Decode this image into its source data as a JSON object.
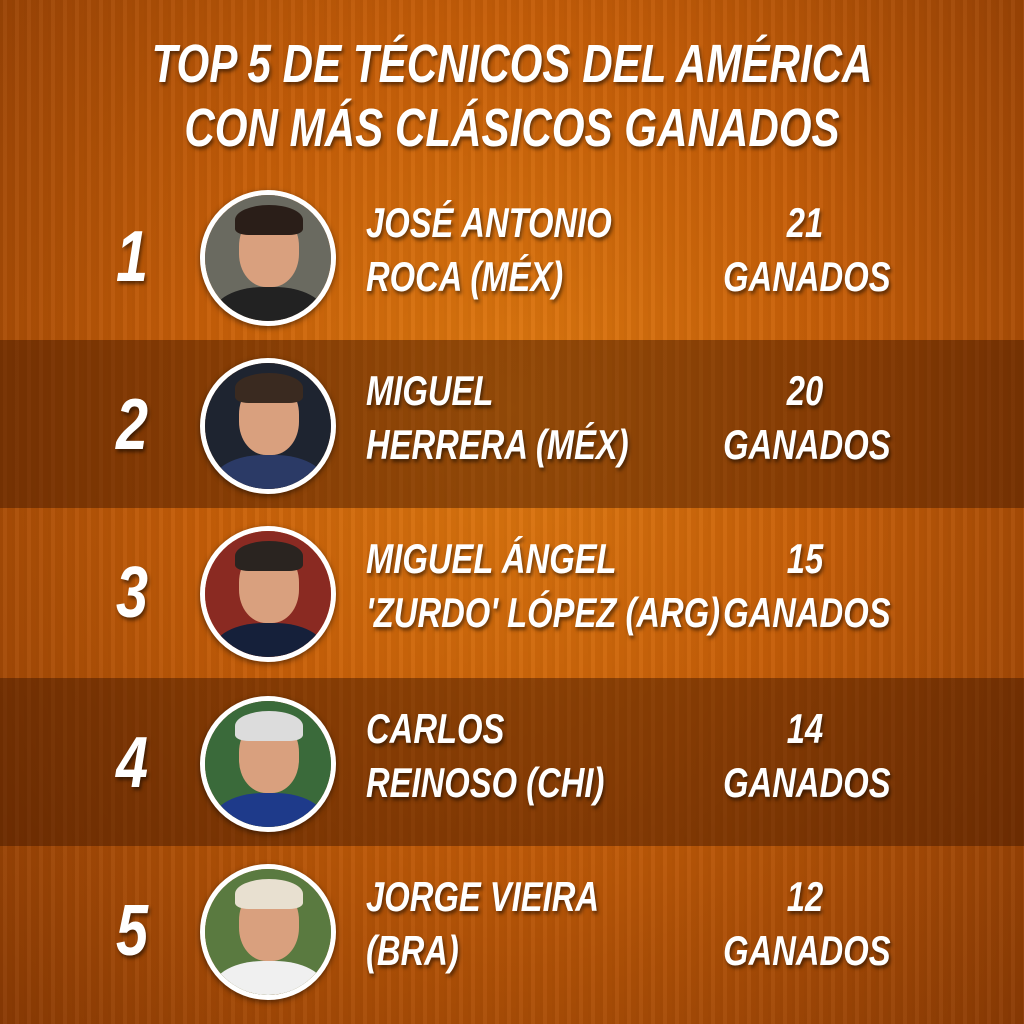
{
  "title": {
    "line1": "TOP 5 DE TÉCNICOS DEL AMÉRICA",
    "line2": "CON MÁS CLÁSICOS GANADOS"
  },
  "rows": [
    {
      "rank": "1",
      "name1": "JOSÉ ANTONIO",
      "name2": "ROCA (MÉX)",
      "wins": "21",
      "wins_label": "GANADOS"
    },
    {
      "rank": "2",
      "name1": "MIGUEL",
      "name2": "HERRERA (MÉX)",
      "wins": "20",
      "wins_label": "GANADOS"
    },
    {
      "rank": "3",
      "name1": "MIGUEL ÁNGEL",
      "name2": "'ZURDO' LÓPEZ (ARG)",
      "wins": "15",
      "wins_label": "GANADOS"
    },
    {
      "rank": "4",
      "name1": "CARLOS",
      "name2": "REINOSO (CHI)",
      "wins": "14",
      "wins_label": "GANADOS"
    },
    {
      "rank": "5",
      "name1": "JORGE VIEIRA",
      "name2": "(BRA)",
      "wins": "12",
      "wins_label": "GANADOS"
    }
  ],
  "colors": {
    "background": "#c65e08",
    "dark_row": "#7a3404",
    "text": "#ffffff"
  }
}
